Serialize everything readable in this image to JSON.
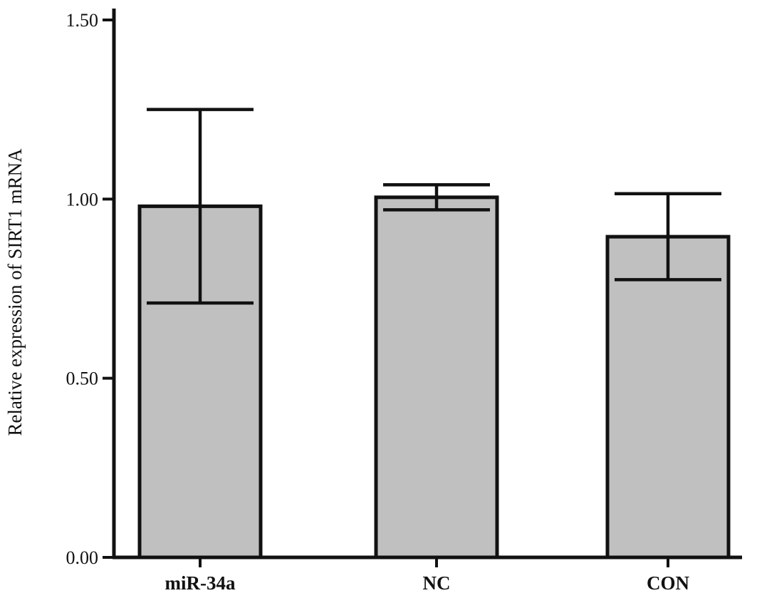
{
  "chart_data": {
    "type": "bar",
    "title": "",
    "xlabel": "",
    "ylabel": "Relative expression of SIRT1 mRNA",
    "categories": [
      "miR-34a",
      "NC",
      "CON"
    ],
    "values": [
      0.98,
      1.005,
      0.895
    ],
    "error_bars": [
      0.27,
      0.035,
      0.12
    ],
    "ylim": [
      0,
      1.5
    ],
    "yticks": [
      0,
      0.5,
      1.0,
      1.5
    ],
    "ytick_labels": [
      "0.00",
      "0.50",
      "1.00",
      "1.50"
    ],
    "grid": false,
    "legend": "none",
    "bar_color": "#c0c0c0",
    "edge_color": "#111111"
  }
}
